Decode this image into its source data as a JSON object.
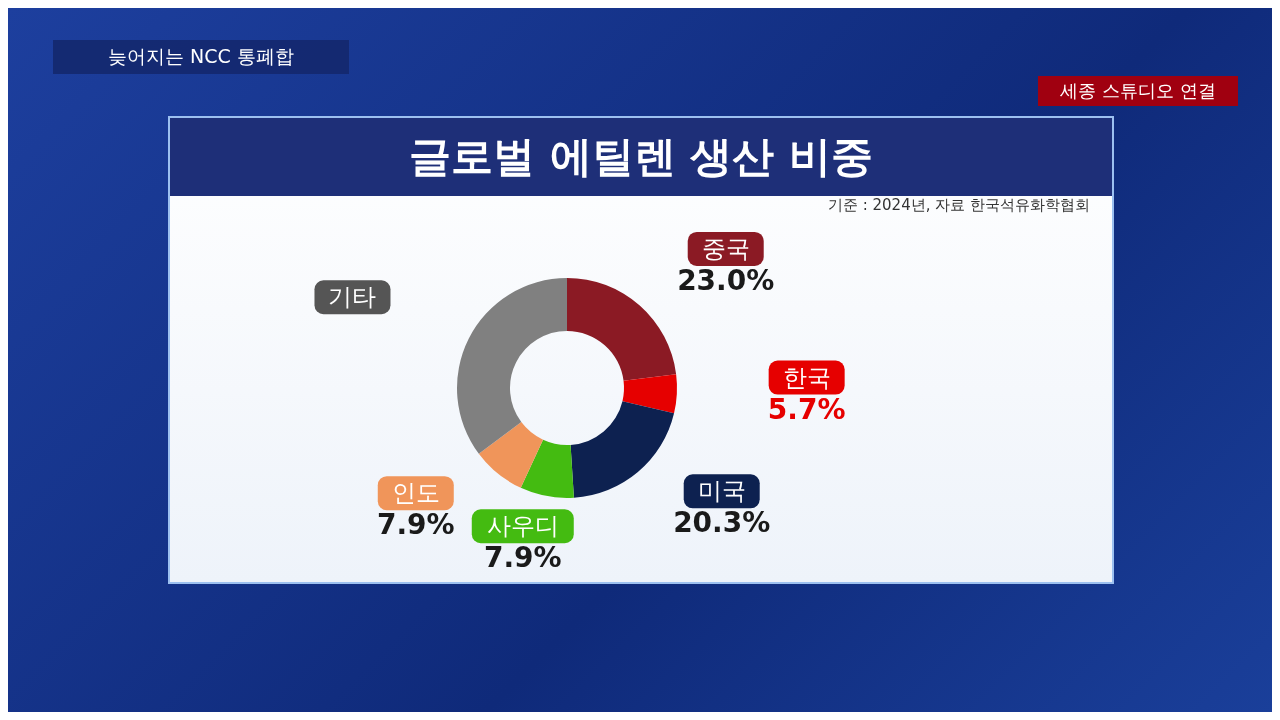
{
  "chart_data": {
    "type": "donut",
    "title": "글로벌 에틸렌 생산 비중",
    "subtitle": "기준 : 2024년, 자료 한국석유화학협회",
    "annotations": [
      "늦어지는 NCC 통폐합",
      "세종 스튜디오 연결"
    ],
    "categories": [
      "중국",
      "한국",
      "미국",
      "사우디",
      "인도",
      "기타"
    ],
    "values": [
      23.0,
      5.7,
      20.3,
      7.9,
      7.9,
      35.2
    ],
    "colors": [
      "#8b1a24",
      "#e60000",
      "#0d2150",
      "#44bb11",
      "#f0955a",
      "#808080"
    ],
    "value_labels": [
      "23.0%",
      "5.7%",
      "20.3%",
      "7.9%",
      "7.9%",
      null
    ],
    "legend": false
  }
}
